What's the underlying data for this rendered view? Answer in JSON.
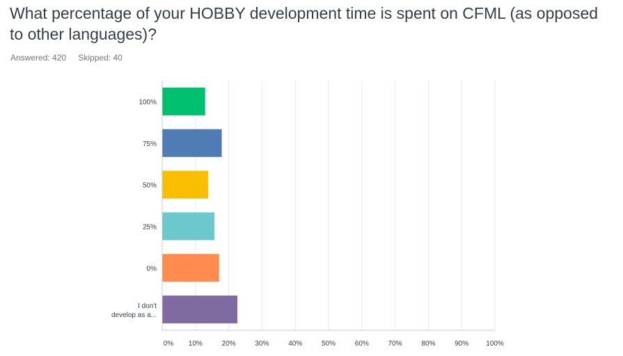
{
  "question": {
    "title": "What percentage of your HOBBY development time is spent on CFML (as opposed to other languages)?"
  },
  "stats": {
    "answered": "Answered: 420",
    "skipped": "Skipped: 40"
  },
  "chart_data": {
    "type": "bar",
    "orientation": "horizontal",
    "categories": [
      "100%",
      "75%",
      "50%",
      "25%",
      "0%",
      "I don't develop as a..."
    ],
    "values": [
      12.9,
      17.9,
      13.8,
      15.7,
      17.1,
      22.6
    ],
    "colors": [
      "#00bf6f",
      "#507cb6",
      "#f9be00",
      "#6bc8cd",
      "#ff8b4f",
      "#7f6aa1"
    ],
    "xlim": [
      0,
      100
    ],
    "xticks": [
      "0%",
      "10%",
      "20%",
      "30%",
      "40%",
      "50%",
      "60%",
      "70%",
      "80%",
      "90%",
      "100%"
    ],
    "xtick_values": [
      0,
      10,
      20,
      30,
      40,
      50,
      60,
      70,
      80,
      90,
      100
    ],
    "grid": true,
    "legend": "none"
  }
}
